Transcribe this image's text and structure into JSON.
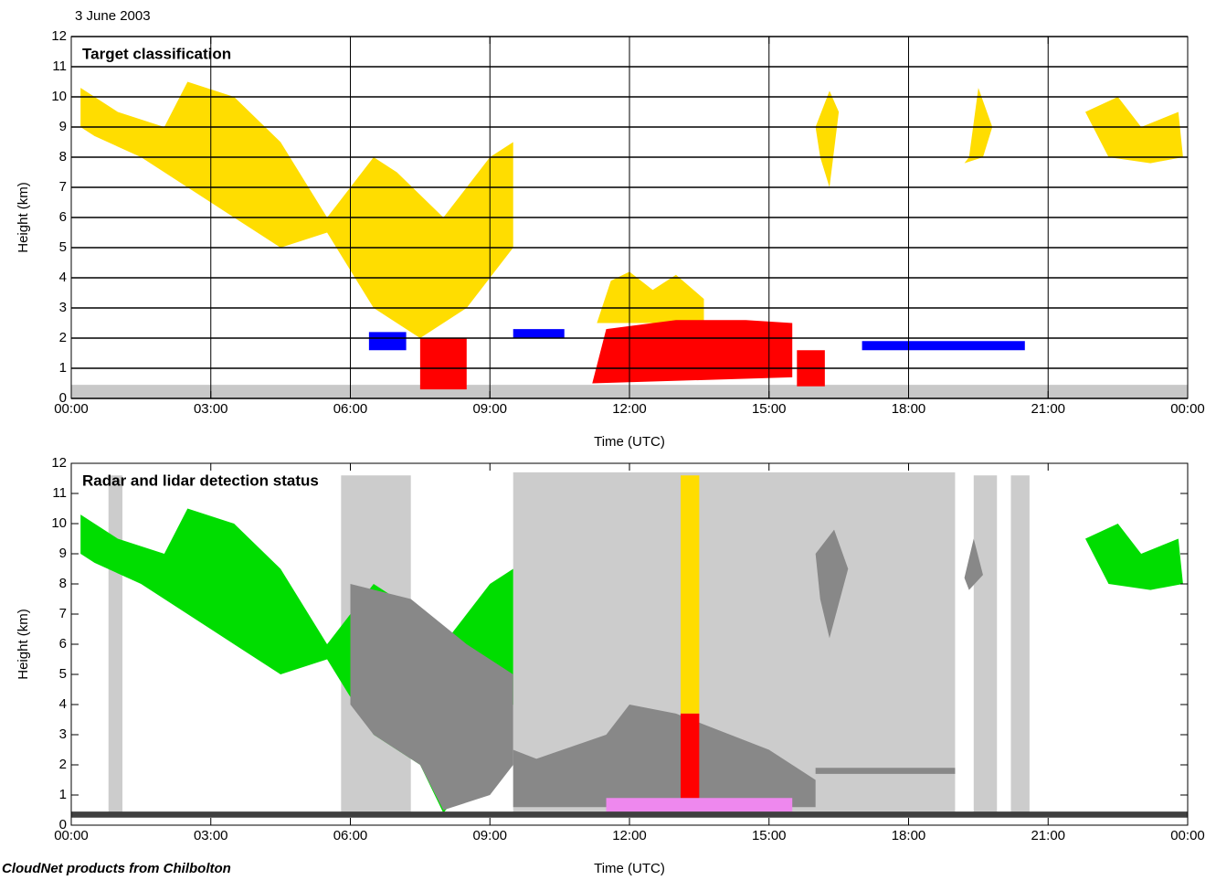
{
  "date": "3 June 2003",
  "footer": "CloudNet products from Chilbolton",
  "chart_data": [
    {
      "type": "polygon",
      "title": "Target classification",
      "x_label": "Time (UTC)",
      "y_label": "Height (km)",
      "xlim": [
        0,
        24
      ],
      "ylim": [
        0,
        12
      ],
      "xticks": [
        {
          "value": 0,
          "label": "00:00"
        },
        {
          "value": 3,
          "label": "03:00"
        },
        {
          "value": 6,
          "label": "06:00"
        },
        {
          "value": 9,
          "label": "09:00"
        },
        {
          "value": 12,
          "label": "12:00"
        },
        {
          "value": 15,
          "label": "15:00"
        },
        {
          "value": 18,
          "label": "18:00"
        },
        {
          "value": 21,
          "label": "21:00"
        },
        {
          "value": 24,
          "label": "00:00"
        }
      ],
      "yticks": [
        0,
        1,
        2,
        3,
        4,
        5,
        6,
        7,
        8,
        9,
        10,
        11,
        12
      ],
      "grid": true,
      "shapes": [
        {
          "color": "#c8c8c8",
          "x": [
            0,
            24,
            24,
            0
          ],
          "y": [
            0,
            0,
            0.45,
            0.45
          ]
        },
        {
          "color": "#ffdd00",
          "x": [
            0.2,
            1,
            2,
            2.5,
            3.5,
            4.5,
            5.5,
            6.5,
            7,
            8,
            9,
            9.5,
            9.5,
            8.5,
            7.5,
            6.5,
            5.5,
            4.5,
            3,
            2,
            1.5,
            0.5,
            0.2
          ],
          "y": [
            10.3,
            9.5,
            9,
            10.5,
            10,
            8.5,
            6,
            8,
            7.5,
            6,
            8,
            8.5,
            5,
            3,
            2,
            3,
            5.5,
            5,
            6.5,
            7.5,
            8,
            8.7,
            9
          ]
        },
        {
          "color": "#ffdd00",
          "x": [
            11.3,
            11.6,
            12,
            12.5,
            13,
            13.6,
            13.6,
            11.3
          ],
          "y": [
            2.5,
            3.9,
            4.2,
            3.6,
            4.1,
            3.3,
            2.5,
            2.5
          ]
        },
        {
          "color": "#ffdd00",
          "x": [
            16,
            16.3,
            16.5,
            16.3,
            16.1
          ],
          "y": [
            9,
            10.2,
            9.5,
            7,
            8
          ]
        },
        {
          "color": "#ffdd00",
          "x": [
            19.3,
            19.5,
            19.8,
            19.6,
            19.2
          ],
          "y": [
            8,
            10.3,
            9,
            8,
            7.8
          ]
        },
        {
          "color": "#ffdd00",
          "x": [
            21.8,
            22.5,
            23,
            23.8,
            23.9,
            23.2,
            22.3
          ],
          "y": [
            9.5,
            10,
            9,
            9.5,
            8,
            7.8,
            8
          ]
        },
        {
          "color": "#ff0000",
          "x": [
            7.5,
            8.5,
            8.5,
            7.5
          ],
          "y": [
            0.3,
            0.3,
            2,
            2
          ]
        },
        {
          "color": "#ff0000",
          "x": [
            11.2,
            15.5,
            15.5,
            14.5,
            13,
            11.5
          ],
          "y": [
            0.5,
            0.7,
            2.5,
            2.6,
            2.6,
            2.3
          ]
        },
        {
          "color": "#ff0000",
          "x": [
            15.6,
            16.2,
            16.2,
            15.6
          ],
          "y": [
            0.4,
            0.4,
            1.6,
            1.6
          ]
        },
        {
          "color": "#0000ff",
          "x": [
            17,
            20.5,
            20.5,
            17
          ],
          "y": [
            1.6,
            1.6,
            1.9,
            1.9
          ]
        },
        {
          "color": "#0000ff",
          "x": [
            6.4,
            7.2,
            7.2,
            6.4
          ],
          "y": [
            1.6,
            1.6,
            2.2,
            2.2
          ]
        },
        {
          "color": "#0000ff",
          "x": [
            9.5,
            10.6,
            10.6,
            9.5
          ],
          "y": [
            2,
            2,
            2.3,
            2.3
          ]
        }
      ]
    },
    {
      "type": "polygon",
      "title": "Radar and lidar detection status",
      "x_label": "Time (UTC)",
      "y_label": "Height (km)",
      "xlim": [
        0,
        24
      ],
      "ylim": [
        0,
        12
      ],
      "xticks": [
        {
          "value": 0,
          "label": "00:00"
        },
        {
          "value": 3,
          "label": "03:00"
        },
        {
          "value": 6,
          "label": "06:00"
        },
        {
          "value": 9,
          "label": "09:00"
        },
        {
          "value": 12,
          "label": "12:00"
        },
        {
          "value": 15,
          "label": "15:00"
        },
        {
          "value": 18,
          "label": "18:00"
        },
        {
          "value": 21,
          "label": "21:00"
        },
        {
          "value": 24,
          "label": "00:00"
        }
      ],
      "yticks": [
        0,
        1,
        2,
        3,
        4,
        5,
        6,
        7,
        8,
        9,
        10,
        11,
        12
      ],
      "grid": false,
      "shapes": [
        {
          "color": "#cccccc",
          "x": [
            0.8,
            1.1,
            1.1,
            0.8
          ],
          "y": [
            0.4,
            0.4,
            11.6,
            11.6
          ]
        },
        {
          "color": "#cccccc",
          "x": [
            5.8,
            7.3,
            7.3,
            5.8
          ],
          "y": [
            0.4,
            0.4,
            11.6,
            11.6
          ]
        },
        {
          "color": "#cccccc",
          "x": [
            9.5,
            19,
            19,
            9.5
          ],
          "y": [
            0.4,
            0.4,
            11.7,
            11.7
          ]
        },
        {
          "color": "#cccccc",
          "x": [
            19.4,
            19.9,
            19.9,
            19.4
          ],
          "y": [
            0.4,
            0.4,
            11.6,
            11.6
          ]
        },
        {
          "color": "#cccccc",
          "x": [
            20.2,
            20.6,
            20.6,
            20.2
          ],
          "y": [
            0.4,
            0.4,
            11.6,
            11.6
          ]
        },
        {
          "color": "#00dd00",
          "x": [
            0.2,
            1,
            2,
            2.5,
            3.5,
            4.5,
            5.5,
            6.5,
            7,
            8,
            9,
            9.5,
            9.5,
            8.8,
            8,
            7.5,
            6.5,
            5.5,
            4.5,
            3,
            2,
            1.5,
            0.5,
            0.2
          ],
          "y": [
            10.3,
            9.5,
            9,
            10.5,
            10,
            8.5,
            6,
            8,
            7.5,
            6,
            8,
            8.5,
            4,
            2,
            0.4,
            2,
            3,
            5.5,
            5,
            6.5,
            7.5,
            8,
            8.7,
            9
          ]
        },
        {
          "color": "#00dd00",
          "x": [
            21.8,
            22.5,
            23,
            23.8,
            23.9,
            23.2,
            22.3
          ],
          "y": [
            9.5,
            10,
            9,
            9.5,
            8,
            7.8,
            8
          ]
        },
        {
          "color": "#888888",
          "x": [
            6,
            7.3,
            8.5,
            9.5,
            9.5,
            9,
            8,
            7.5,
            6.5,
            6
          ],
          "y": [
            8,
            7.5,
            6,
            5,
            2,
            1,
            0.5,
            2,
            3,
            4
          ]
        },
        {
          "color": "#888888",
          "x": [
            9.5,
            10,
            11.5,
            12,
            13,
            15,
            15.5,
            16,
            16,
            15.5,
            11.5,
            9.5
          ],
          "y": [
            2.5,
            2.2,
            3,
            4,
            3.7,
            2.5,
            2,
            1.5,
            0.6,
            0.6,
            0.6,
            0.6
          ]
        },
        {
          "color": "#888888",
          "x": [
            16,
            16.4,
            16.7,
            16.3,
            16.1
          ],
          "y": [
            9,
            9.8,
            8.5,
            6.2,
            7.5
          ]
        },
        {
          "color": "#888888",
          "x": [
            19.2,
            19.4,
            19.6,
            19.3
          ],
          "y": [
            8.2,
            9.5,
            8.3,
            7.8
          ]
        },
        {
          "color": "#888888",
          "x": [
            16,
            19,
            19,
            16
          ],
          "y": [
            1.7,
            1.7,
            1.9,
            1.9
          ]
        },
        {
          "color": "#ffdd00",
          "x": [
            13.1,
            13.5,
            13.5,
            13.1
          ],
          "y": [
            3.7,
            3.7,
            11.6,
            11.6
          ]
        },
        {
          "color": "#ff0000",
          "x": [
            13.1,
            13.5,
            13.5,
            13.1
          ],
          "y": [
            0.4,
            0.4,
            3.7,
            3.7
          ]
        },
        {
          "color": "#ee88ee",
          "x": [
            11.5,
            15.5,
            15.5,
            11.5
          ],
          "y": [
            0.4,
            0.4,
            0.9,
            0.9
          ]
        },
        {
          "color": "#404040",
          "x": [
            0,
            24,
            24,
            0
          ],
          "y": [
            0.25,
            0.25,
            0.45,
            0.45
          ]
        }
      ]
    }
  ]
}
